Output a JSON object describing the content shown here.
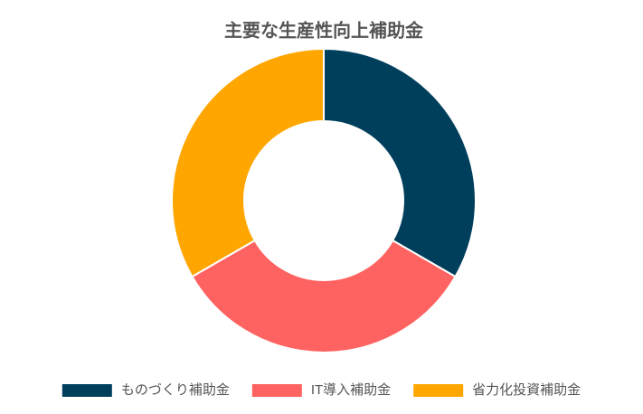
{
  "chart_data": {
    "type": "donut",
    "title": "主要な生産性向上補助金",
    "categories": [
      "ものづくり補助金",
      "IT導入補助金",
      "省力化投資補助金"
    ],
    "values": [
      33.3,
      33.3,
      33.3
    ],
    "colors": [
      "#003f5c",
      "#ff6361",
      "#ffa600"
    ],
    "legend": "bottom"
  }
}
